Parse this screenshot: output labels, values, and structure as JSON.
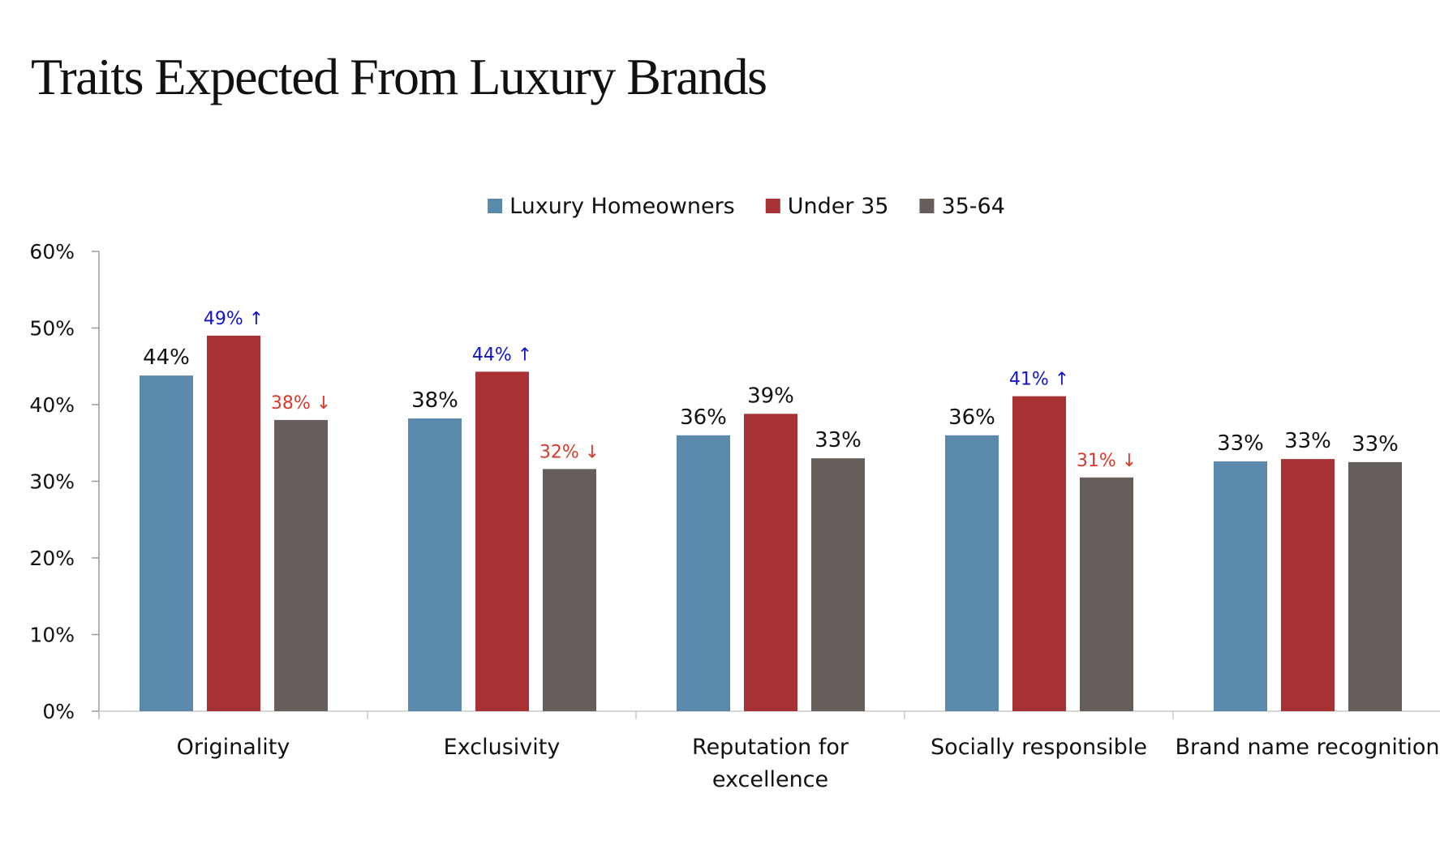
{
  "title": "Traits Expected From Luxury Brands",
  "chart_data": {
    "type": "bar",
    "title": "Traits Expected From Luxury Brands",
    "xlabel": "",
    "ylabel": "",
    "categories": [
      [
        "Originality"
      ],
      [
        "Exclusivity"
      ],
      [
        "Reputation for",
        "excellence"
      ],
      [
        "Socially responsible"
      ],
      [
        "Brand name recognition"
      ]
    ],
    "ylim": [
      0,
      60
    ],
    "yticks": [
      "0%",
      "10%",
      "20%",
      "30%",
      "40%",
      "50%",
      "60%"
    ],
    "grid": false,
    "legend_position": "top-center",
    "series": [
      {
        "name": "Luxury Homeowners",
        "color": "#5b89ab",
        "values": [
          43.8,
          38.2,
          36.0,
          36.0,
          32.6
        ],
        "labels": [
          "44%",
          "38%",
          "36%",
          "36%",
          "33%"
        ],
        "flags": [
          "",
          "",
          "",
          "",
          ""
        ]
      },
      {
        "name": "Under 35",
        "color": "#a83133",
        "values": [
          49.0,
          44.3,
          38.8,
          41.1,
          32.9
        ],
        "labels": [
          "49%",
          "44%",
          "39%",
          "41%",
          "33%"
        ],
        "flags": [
          "up",
          "up",
          "",
          "up",
          ""
        ]
      },
      {
        "name": "35-64",
        "color": "#655e5b",
        "values": [
          38.0,
          31.6,
          33.0,
          30.5,
          32.5
        ],
        "labels": [
          "38%",
          "32%",
          "33%",
          "31%",
          "33%"
        ],
        "flags": [
          "down",
          "down",
          "",
          "down",
          ""
        ]
      }
    ],
    "arrows": {
      "up": "↑",
      "down": "↓"
    },
    "annotation_colors": {
      "up": "#1212c8",
      "down": "#d73a2a"
    }
  }
}
